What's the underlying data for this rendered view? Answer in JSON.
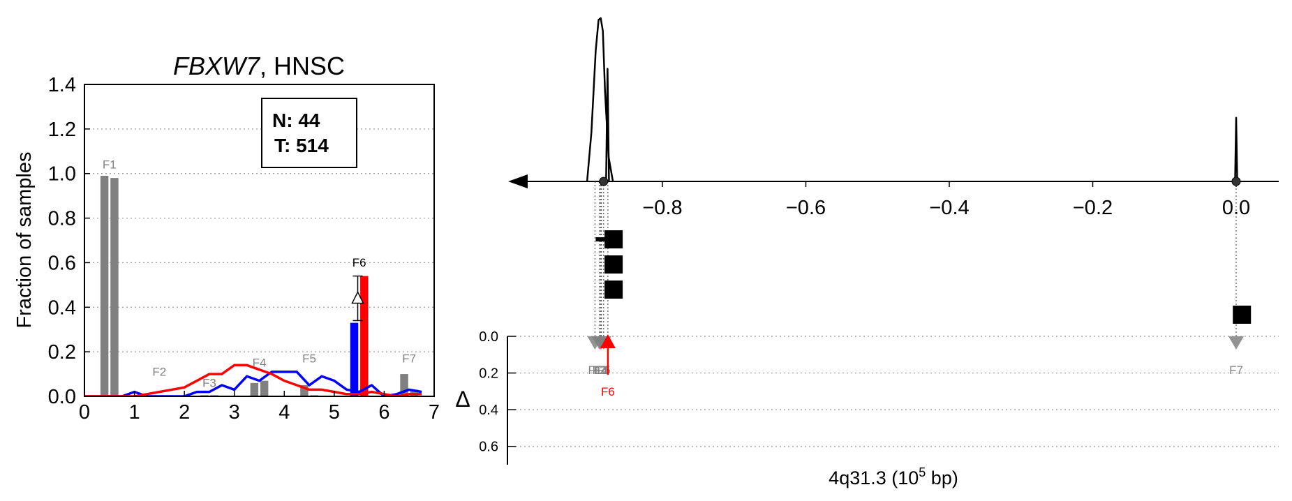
{
  "chart_data": [
    {
      "type": "bar",
      "title_gene": "FBXW7",
      "title_rest": ", HNSC",
      "ylabel": "Fraction of samples",
      "xlim": [
        0,
        7
      ],
      "ylim": [
        0,
        1.4
      ],
      "xticks": [
        "0",
        "1",
        "2",
        "3",
        "4",
        "5",
        "6",
        "7"
      ],
      "yticks": [
        "0.0",
        "0.2",
        "0.4",
        "0.6",
        "0.8",
        "1.0",
        "1.2",
        "1.4"
      ],
      "grid": true,
      "stats_box": {
        "n_label": "N: 44",
        "t_label": "T: 514"
      },
      "bars": [
        {
          "x": 0.4,
          "value": 0.99,
          "color": "#808080"
        },
        {
          "x": 0.6,
          "value": 0.98,
          "color": "#808080"
        },
        {
          "x": 1.4,
          "value": 0.005,
          "color": "#808080"
        },
        {
          "x": 1.6,
          "value": 0.005,
          "color": "#808080"
        },
        {
          "x": 2.4,
          "value": 0.005,
          "color": "#808080"
        },
        {
          "x": 2.6,
          "value": 0.005,
          "color": "#808080"
        },
        {
          "x": 3.4,
          "value": 0.06,
          "color": "#808080"
        },
        {
          "x": 3.6,
          "value": 0.07,
          "color": "#808080"
        },
        {
          "x": 4.4,
          "value": 0.05,
          "color": "#808080"
        },
        {
          "x": 4.6,
          "value": 0.005,
          "color": "#808080"
        },
        {
          "x": 5.4,
          "value": 0.33,
          "color": "#0000ff"
        },
        {
          "x": 5.6,
          "value": 0.54,
          "color": "#ff0000"
        },
        {
          "x": 6.4,
          "value": 0.1,
          "color": "#808080"
        },
        {
          "x": 6.6,
          "value": 0.03,
          "color": "#808080"
        }
      ],
      "bar_labels": [
        {
          "text": "F1",
          "x": 0.5,
          "value": 1.01,
          "color": "#808080"
        },
        {
          "text": "F2",
          "x": 1.5,
          "value": 0.08,
          "color": "#808080"
        },
        {
          "text": "F3",
          "x": 2.5,
          "value": 0.03,
          "color": "#808080"
        },
        {
          "text": "F4",
          "x": 3.5,
          "value": 0.12,
          "color": "#808080"
        },
        {
          "text": "F5",
          "x": 4.5,
          "value": 0.14,
          "color": "#808080"
        },
        {
          "text": "F6",
          "x": 5.5,
          "value": 0.57,
          "color": "#000000"
        },
        {
          "text": "F7",
          "x": 6.5,
          "value": 0.14,
          "color": "#808080"
        }
      ],
      "delta_bracket": {
        "x": 5.47,
        "y_low": 0.34,
        "y_high": 0.54
      },
      "series": [
        {
          "color": "#0000ff",
          "x": [
            0,
            0.25,
            0.5,
            0.75,
            1.0,
            1.25,
            1.5,
            1.75,
            2.0,
            2.25,
            2.5,
            2.75,
            3.0,
            3.25,
            3.5,
            3.75,
            4.0,
            4.25,
            4.5,
            4.75,
            5.0,
            5.25,
            5.5,
            5.75,
            6.0,
            6.25,
            6.5,
            6.75
          ],
          "y": [
            0.0,
            0.0,
            0.0,
            0.0,
            0.02,
            0.0,
            0.0,
            0.0,
            0.0,
            0.02,
            0.02,
            0.05,
            0.03,
            0.09,
            0.07,
            0.11,
            0.11,
            0.11,
            0.05,
            0.09,
            0.07,
            0.03,
            0.02,
            0.05,
            0.0,
            0.01,
            0.03,
            0.02
          ]
        },
        {
          "color": "#ff0000",
          "x": [
            0,
            0.25,
            0.5,
            0.75,
            1.0,
            1.25,
            1.5,
            1.75,
            2.0,
            2.25,
            2.5,
            2.75,
            3.0,
            3.25,
            3.5,
            3.75,
            4.0,
            4.25,
            4.5,
            4.75,
            5.0,
            5.25,
            5.5,
            5.75,
            6.0,
            6.25,
            6.5,
            6.75
          ],
          "y": [
            0.0,
            0.0,
            0.0,
            0.0,
            0.0,
            0.01,
            0.02,
            0.03,
            0.04,
            0.07,
            0.1,
            0.1,
            0.14,
            0.14,
            0.12,
            0.1,
            0.07,
            0.05,
            0.03,
            0.03,
            0.02,
            0.01,
            0.01,
            0.02,
            0.01,
            0.0,
            0.01,
            0.01
          ]
        }
      ]
    },
    {
      "type": "scatter",
      "xlabel_prefix": "4q31.3 (10",
      "xlabel_exp": "5",
      "xlabel_suffix": " bp)",
      "xlim": [
        -0.98,
        0.06
      ],
      "xticks": [
        {
          "value": -0.8,
          "label": "−0.8"
        },
        {
          "value": -0.6,
          "label": "−0.6"
        },
        {
          "value": -0.4,
          "label": "−0.4"
        },
        {
          "value": -0.2,
          "label": "−0.2"
        },
        {
          "value": 0.0,
          "label": "0.0"
        }
      ],
      "delta_label": "Δ",
      "delta_ylim": [
        0,
        0.7
      ],
      "delta_yticks": [
        "0.0",
        "0.2",
        "0.4",
        "0.6"
      ],
      "breakpoints": [
        -0.882,
        0.0
      ],
      "peaks": [
        {
          "x": [
            -0.905,
            -0.899,
            -0.893,
            -0.889,
            -0.886,
            -0.883,
            -0.88,
            -0.875,
            -0.869
          ],
          "h": [
            0,
            0.3,
            0.8,
            0.99,
            1.0,
            0.92,
            0.55,
            0.15,
            0
          ]
        },
        {
          "x": [
            -0.8785,
            -0.8765,
            -0.8745
          ],
          "h": [
            0,
            0.69,
            0
          ]
        },
        {
          "x": [
            -0.0015,
            0.0,
            0.0015
          ],
          "h": [
            0,
            0.39,
            0
          ]
        }
      ],
      "feature_squares": [
        {
          "x": -0.868,
          "row": 0,
          "stem_from": -0.893
        },
        {
          "x": -0.868,
          "row": 1,
          "stem_from": -0.875
        },
        {
          "x": -0.868,
          "row": 2,
          "stem_from": -0.875
        },
        {
          "x": 0.008,
          "row": 3,
          "stem_from": 0.003
        }
      ],
      "markers": [
        {
          "label": "F1",
          "x": -0.894,
          "delta": 0.0,
          "color": "#808080",
          "dir": "down"
        },
        {
          "label": "F2",
          "x": -0.888,
          "delta": 0.0,
          "color": "#808080",
          "dir": "down"
        },
        {
          "label": "F3",
          "x": -0.885,
          "delta": 0.0,
          "color": "#808080",
          "dir": "down"
        },
        {
          "label": "F4",
          "x": -0.886,
          "delta": 0.0,
          "color": "#808080",
          "dir": "down"
        },
        {
          "label": "F5",
          "x": -0.882,
          "delta": 0.0,
          "color": "#808080",
          "dir": "down"
        },
        {
          "label": "F6",
          "x": -0.876,
          "delta": 0.21,
          "color": "#ff0000",
          "dir": "up"
        },
        {
          "label": "F7",
          "x": 0.0,
          "delta": 0.0,
          "color": "#808080",
          "dir": "down"
        }
      ]
    }
  ]
}
